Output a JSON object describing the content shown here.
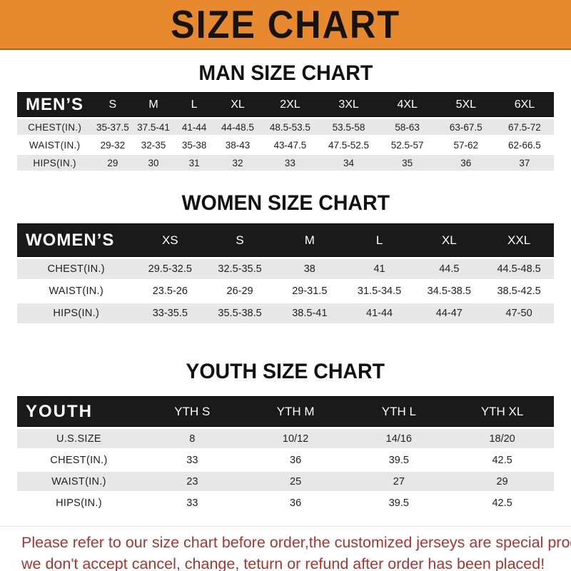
{
  "banner": {
    "title": "SIZE CHART"
  },
  "colors": {
    "banner_bg": "#E8892F",
    "table_header_bg": "#1A1A1A",
    "row_shade": "#E7E7E7",
    "disclaimer_text": "#A83530"
  },
  "sections": [
    {
      "heading": "MAN SIZE CHART",
      "table": {
        "header_label": "MEN’S",
        "columns": [
          "S",
          "M",
          "L",
          "XL",
          "2XL",
          "3XL",
          "4XL",
          "5XL",
          "6XL"
        ],
        "rows": [
          {
            "label": "CHEST(IN.)",
            "values": [
              "35-37.5",
              "37.5-41",
              "41-44",
              "44-48.5",
              "48.5-53.5",
              "53.5-58",
              "58-63",
              "63-67.5",
              "67.5-72"
            ]
          },
          {
            "label": "WAIST(IN.)",
            "values": [
              "29-32",
              "32-35",
              "35-38",
              "38-43",
              "43-47.5",
              "47.5-52.5",
              "52.5-57",
              "57-62",
              "62-66.5"
            ]
          },
          {
            "label": "HIPS(IN.)",
            "values": [
              "29",
              "30",
              "31",
              "32",
              "33",
              "34",
              "35",
              "36",
              "37"
            ]
          }
        ]
      }
    },
    {
      "heading": "WOMEN SIZE CHART",
      "table": {
        "header_label": "WOMEN’S",
        "columns": [
          "XS",
          "S",
          "M",
          "L",
          "XL",
          "XXL"
        ],
        "rows": [
          {
            "label": "CHEST(IN.)",
            "values": [
              "29.5-32.5",
              "32.5-35.5",
              "38",
              "41",
              "44.5",
              "44.5-48.5"
            ]
          },
          {
            "label": "WAIST(IN.)",
            "values": [
              "23.5-26",
              "26-29",
              "29-31.5",
              "31.5-34.5",
              "34.5-38.5",
              "38.5-42.5"
            ]
          },
          {
            "label": "HIPS(IN.)",
            "values": [
              "33-35.5",
              "35.5-38.5",
              "38.5-41",
              "41-44",
              "44-47",
              "47-50"
            ]
          }
        ]
      }
    },
    {
      "heading": "YOUTH SIZE CHART",
      "table": {
        "header_label": "YOUTH",
        "columns": [
          "YTH S",
          "YTH M",
          "YTH L",
          "YTH XL"
        ],
        "rows": [
          {
            "label": "U.S.SIZE",
            "values": [
              "8",
              "10/12",
              "14/16",
              "18/20"
            ]
          },
          {
            "label": "CHEST(IN.)",
            "values": [
              "33",
              "36",
              "39.5",
              "42.5"
            ]
          },
          {
            "label": "WAIST(IN.)",
            "values": [
              "23",
              "25",
              "27",
              "29"
            ]
          },
          {
            "label": "HIPS(IN.)",
            "values": [
              "33",
              "36",
              "39.5",
              "42.5"
            ]
          }
        ]
      }
    }
  ],
  "disclaimer": {
    "line1": "Please refer to our size chart before order,the customized jerseys are special products,",
    "line2": "we don't accept cancel, change, teturn or refund after order has been placed!"
  }
}
